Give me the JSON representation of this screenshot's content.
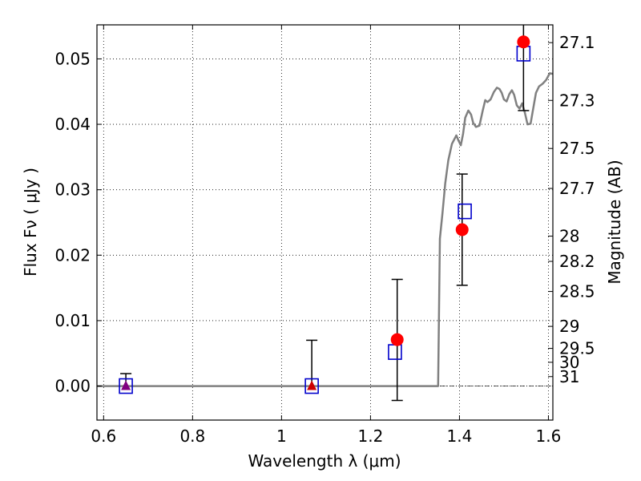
{
  "chart_data": {
    "type": "scatter",
    "title": "",
    "xlabel": "Wavelength  λ (μm)",
    "ylabel": "Flux  Fν  ( μJy )",
    "ylabel_right": "Magnitude (AB)",
    "xlim": [
      0.585,
      1.61
    ],
    "ylim": [
      -0.0052,
      0.0552
    ],
    "grid": true,
    "x_ticks": [
      {
        "value": 0.6,
        "label": "0.6"
      },
      {
        "value": 0.8,
        "label": "0.8"
      },
      {
        "value": 1.0,
        "label": "1"
      },
      {
        "value": 1.2,
        "label": "1.2"
      },
      {
        "value": 1.4,
        "label": "1.4"
      },
      {
        "value": 1.6,
        "label": "1.6"
      }
    ],
    "y_ticks": [
      {
        "value": 0.0,
        "label": "0.00"
      },
      {
        "value": 0.01,
        "label": "0.01"
      },
      {
        "value": 0.02,
        "label": "0.02"
      },
      {
        "value": 0.03,
        "label": "0.03"
      },
      {
        "value": 0.04,
        "label": "0.04"
      },
      {
        "value": 0.05,
        "label": "0.05"
      }
    ],
    "magnitude_ticks": [
      {
        "value": 27.1,
        "label": "27.1"
      },
      {
        "value": 27.3,
        "label": "27.3"
      },
      {
        "value": 27.5,
        "label": "27.5"
      },
      {
        "value": 27.7,
        "label": "27.7"
      },
      {
        "value": 28.0,
        "label": "28"
      },
      {
        "value": 28.2,
        "label": "28.2"
      },
      {
        "value": 28.5,
        "label": "28.5"
      },
      {
        "value": 29.0,
        "label": "29"
      },
      {
        "value": 29.5,
        "label": "29.5"
      },
      {
        "value": 30.0,
        "label": "30"
      },
      {
        "value": 31.0,
        "label": "31"
      }
    ],
    "observed": [
      {
        "x": 0.65,
        "y": 0.0,
        "err_lo": null,
        "err_hi": 0.0019,
        "marker": "triangle"
      },
      {
        "x": 1.068,
        "y": 0.0,
        "err_lo": null,
        "err_hi": 0.007,
        "marker": "triangle"
      },
      {
        "x": 1.26,
        "y": 0.0071,
        "err_lo": -0.0022,
        "err_hi": 0.0163,
        "marker": "circle"
      },
      {
        "x": 1.406,
        "y": 0.0239,
        "err_lo": 0.0154,
        "err_hi": 0.0324,
        "marker": "circle"
      },
      {
        "x": 1.544,
        "y": 0.0526,
        "err_lo": 0.0421,
        "err_hi": 0.0552,
        "marker": "circle"
      }
    ],
    "model_points": [
      {
        "x": 0.65,
        "y": 0.0
      },
      {
        "x": 1.068,
        "y": 0.0
      },
      {
        "x": 1.255,
        "y": 0.0052
      },
      {
        "x": 1.412,
        "y": 0.0267
      },
      {
        "x": 1.544,
        "y": 0.0508
      }
    ],
    "model_spectrum": [
      [
        0.585,
        0.0
      ],
      [
        1.352,
        0.0
      ],
      [
        1.356,
        0.0225
      ],
      [
        1.362,
        0.0265
      ],
      [
        1.368,
        0.031
      ],
      [
        1.375,
        0.0345
      ],
      [
        1.383,
        0.037
      ],
      [
        1.393,
        0.0383
      ],
      [
        1.398,
        0.0375
      ],
      [
        1.403,
        0.0368
      ],
      [
        1.408,
        0.0385
      ],
      [
        1.413,
        0.041
      ],
      [
        1.42,
        0.0421
      ],
      [
        1.426,
        0.0415
      ],
      [
        1.431,
        0.0402
      ],
      [
        1.437,
        0.0396
      ],
      [
        1.445,
        0.0398
      ],
      [
        1.452,
        0.042
      ],
      [
        1.458,
        0.0437
      ],
      [
        1.463,
        0.0434
      ],
      [
        1.47,
        0.0438
      ],
      [
        1.477,
        0.0449
      ],
      [
        1.484,
        0.0456
      ],
      [
        1.49,
        0.0454
      ],
      [
        1.495,
        0.0448
      ],
      [
        1.5,
        0.0438
      ],
      [
        1.506,
        0.0435
      ],
      [
        1.512,
        0.0446
      ],
      [
        1.518,
        0.0452
      ],
      [
        1.523,
        0.0445
      ],
      [
        1.529,
        0.0429
      ],
      [
        1.535,
        0.0424
      ],
      [
        1.541,
        0.0432
      ],
      [
        1.547,
        0.0418
      ],
      [
        1.553,
        0.04
      ],
      [
        1.56,
        0.0401
      ],
      [
        1.566,
        0.0425
      ],
      [
        1.572,
        0.0448
      ],
      [
        1.579,
        0.0458
      ],
      [
        1.587,
        0.0462
      ],
      [
        1.595,
        0.0468
      ],
      [
        1.603,
        0.0478
      ],
      [
        1.61,
        0.0477
      ]
    ],
    "colors": {
      "observed": "#ff0000",
      "upper_limit": "#800080",
      "model_points": "#0000cc",
      "spectrum": "#808080",
      "errorbar": "#000000"
    }
  }
}
